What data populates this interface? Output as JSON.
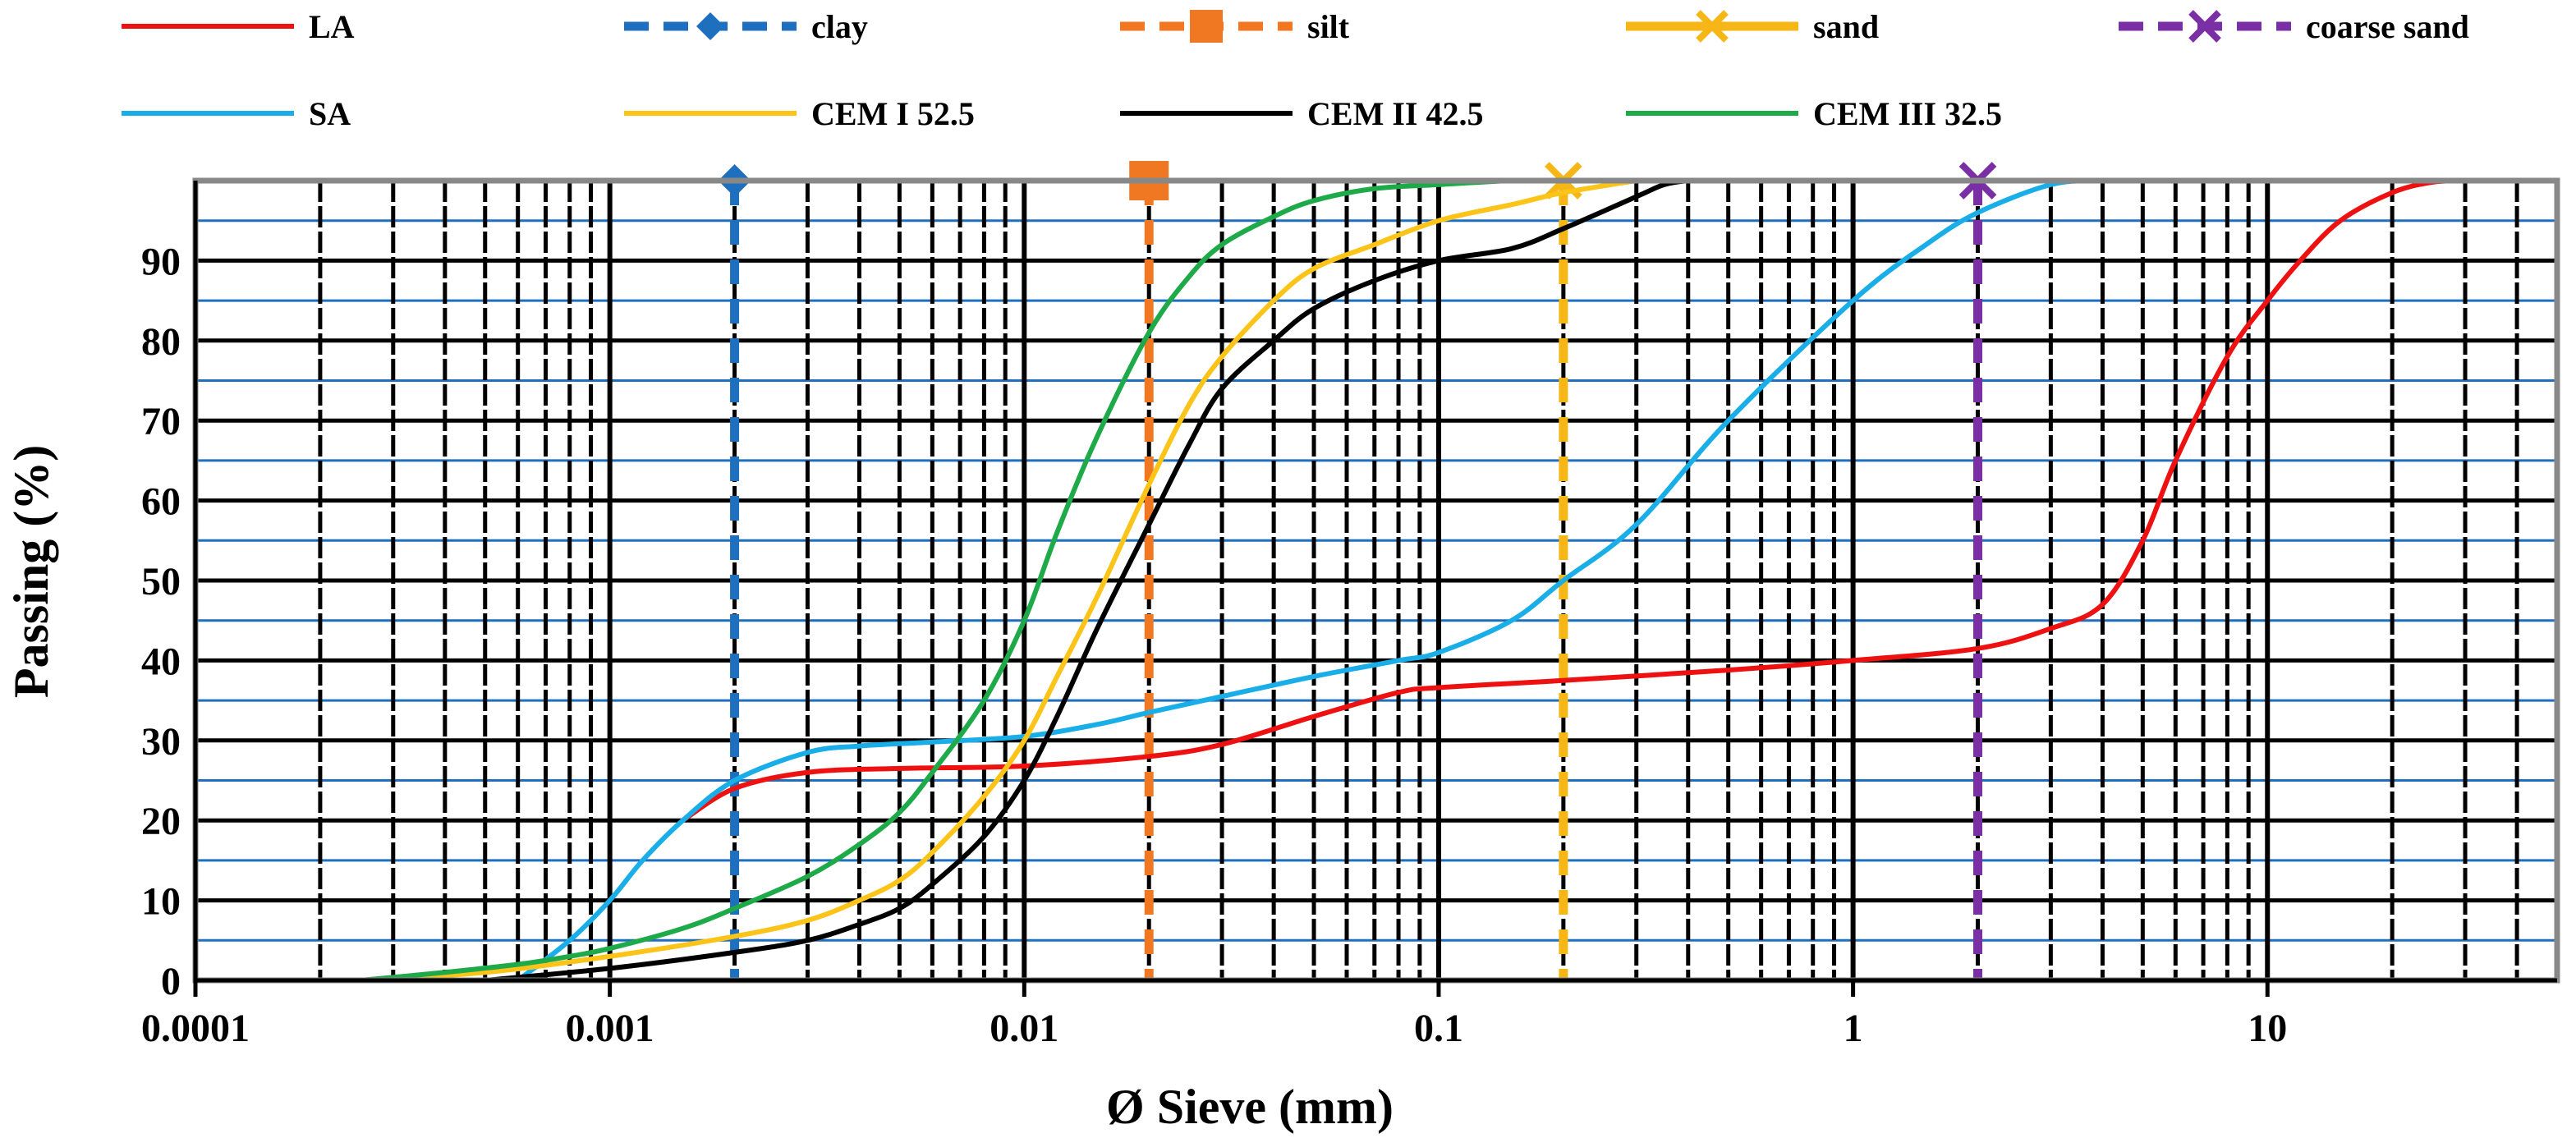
{
  "chart_data": {
    "type": "line",
    "x_scale": "log",
    "title": "",
    "xlabel": "Ø Sieve (mm)",
    "ylabel": "Passing (%)",
    "xlim": [
      0.0001,
      50
    ],
    "ylim": [
      0,
      100
    ],
    "x_major_ticks": [
      0.0001,
      0.001,
      0.01,
      0.1,
      1,
      10
    ],
    "x_tick_labels": [
      "0.0001",
      "0.001",
      "0.01",
      "0.1",
      "1",
      "10"
    ],
    "y_ticks": [
      0,
      10,
      20,
      30,
      40,
      50,
      60,
      70,
      80,
      90
    ],
    "y_tick_labels": [
      "0",
      "10",
      "20",
      "30",
      "40",
      "50",
      "60",
      "70",
      "80",
      "90"
    ],
    "y_minor_gridlines": [
      5,
      15,
      25,
      35,
      45,
      55,
      65,
      75,
      85,
      95
    ],
    "grid": true,
    "legend_position": "top",
    "series": [
      {
        "name": "LA",
        "color": "#ee1111",
        "style": "solid",
        "x": [
          0.0015,
          0.002,
          0.003,
          0.005,
          0.01,
          0.02,
          0.03,
          0.05,
          0.08,
          0.1,
          0.2,
          0.5,
          1,
          2,
          3,
          4,
          5,
          6,
          8,
          10,
          12,
          15,
          20,
          25,
          30
        ],
        "y": [
          20,
          24,
          26,
          26.5,
          26.8,
          28,
          29.5,
          33,
          36,
          36.6,
          37.5,
          38.8,
          40,
          41.5,
          44,
          47,
          55,
          65,
          78,
          85,
          90,
          95,
          98.5,
          99.8,
          100
        ]
      },
      {
        "name": "SA",
        "color": "#19aee8",
        "style": "solid",
        "x": [
          0.0006,
          0.0008,
          0.001,
          0.0012,
          0.0015,
          0.002,
          0.003,
          0.004,
          0.006,
          0.01,
          0.015,
          0.02,
          0.03,
          0.05,
          0.08,
          0.1,
          0.15,
          0.2,
          0.3,
          0.5,
          1,
          1.5,
          2,
          3,
          4,
          5
        ],
        "y": [
          0,
          5,
          10,
          15,
          20,
          25,
          28.5,
          29.3,
          29.8,
          30.5,
          32,
          33.5,
          35.5,
          38,
          40,
          41,
          45,
          50,
          57,
          70,
          85,
          92,
          96,
          99.5,
          100,
          100
        ]
      },
      {
        "name": "CEM I 52.5",
        "color": "#fcc419",
        "style": "solid",
        "x": [
          0.00025,
          0.0005,
          0.001,
          0.002,
          0.003,
          0.004,
          0.005,
          0.006,
          0.008,
          0.01,
          0.012,
          0.015,
          0.02,
          0.025,
          0.03,
          0.04,
          0.05,
          0.07,
          0.1,
          0.15,
          0.2,
          0.3
        ],
        "y": [
          0,
          1,
          3,
          5.5,
          7.5,
          10,
          12.5,
          16,
          23,
          30,
          38,
          48,
          62,
          72,
          78,
          85,
          89,
          92,
          95,
          97,
          98.5,
          100
        ]
      },
      {
        "name": "CEM II 42.5",
        "color": "#000000",
        "style": "solid",
        "x": [
          0.0005,
          0.001,
          0.002,
          0.003,
          0.004,
          0.005,
          0.006,
          0.008,
          0.01,
          0.012,
          0.015,
          0.02,
          0.025,
          0.03,
          0.04,
          0.05,
          0.07,
          0.1,
          0.15,
          0.2,
          0.3,
          0.35,
          0.4
        ],
        "y": [
          0,
          1.5,
          3.5,
          5,
          7,
          9,
          12,
          18,
          25,
          33,
          44,
          57,
          67,
          74,
          80,
          84,
          87.5,
          90,
          91.5,
          94,
          98,
          99.5,
          100
        ]
      },
      {
        "name": "CEM III 32.5",
        "color": "#1faa4a",
        "style": "solid",
        "x": [
          0.00025,
          0.0004,
          0.0006,
          0.0008,
          0.001,
          0.0015,
          0.002,
          0.003,
          0.004,
          0.005,
          0.006,
          0.008,
          0.01,
          0.012,
          0.015,
          0.02,
          0.025,
          0.03,
          0.04,
          0.05,
          0.07,
          0.1,
          0.15,
          0.2
        ],
        "y": [
          0,
          1,
          2,
          3,
          4,
          6.5,
          9,
          13,
          17,
          21,
          26,
          35,
          45,
          56,
          68,
          81,
          88,
          92,
          95.5,
          97.5,
          99,
          99.5,
          100,
          100
        ]
      }
    ],
    "boundaries": [
      {
        "name": "clay",
        "x": 0.002,
        "color": "#1f6fbf",
        "marker": "diamond"
      },
      {
        "name": "silt",
        "x": 0.02,
        "color": "#f07822",
        "marker": "square"
      },
      {
        "name": "sand",
        "x": 0.2,
        "color": "#f5b616",
        "marker": "x"
      },
      {
        "name": "coarse sand",
        "x": 2,
        "color": "#7b2fa5",
        "marker": "x"
      }
    ]
  },
  "legend": {
    "row1": [
      {
        "label": "LA",
        "color": "#ee1111",
        "kind": "line"
      },
      {
        "label": "clay",
        "color": "#1f6fbf",
        "kind": "dash",
        "marker": "diamond"
      },
      {
        "label": "silt",
        "color": "#f07822",
        "kind": "dash",
        "marker": "square"
      },
      {
        "label": "sand",
        "color": "#f5b616",
        "kind": "line-thick",
        "marker": "x"
      },
      {
        "label": "coarse sand",
        "color": "#7b2fa5",
        "kind": "dash",
        "marker": "x"
      }
    ],
    "row2": [
      {
        "label": "SA",
        "color": "#19aee8",
        "kind": "line"
      },
      {
        "label": "CEM I 52.5",
        "color": "#fcc419",
        "kind": "line"
      },
      {
        "label": "CEM II 42.5",
        "color": "#000000",
        "kind": "line"
      },
      {
        "label": "CEM III 32.5",
        "color": "#1faa4a",
        "kind": "line"
      }
    ]
  },
  "colors": {
    "minor_hgrid": "#1f6fbf",
    "major_hgrid": "#000000",
    "plot_border": "#888888"
  }
}
